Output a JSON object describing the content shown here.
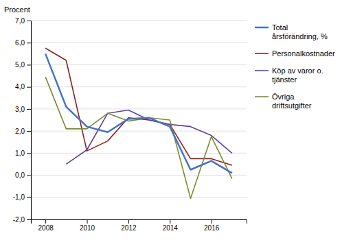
{
  "chart_data": {
    "type": "line",
    "ylabel": "Procent",
    "x": [
      2008,
      2009,
      2010,
      2011,
      2012,
      2013,
      2014,
      2015,
      2016,
      2017
    ],
    "series": [
      {
        "name": "Total\nårsförändring, %",
        "color": "#4472C4",
        "values": [
          5.5,
          3.1,
          2.2,
          1.95,
          2.55,
          2.6,
          2.2,
          0.25,
          0.65,
          0.1
        ]
      },
      {
        "name": "Personalkostnader",
        "color": "#8B2020",
        "values": [
          5.75,
          5.2,
          1.1,
          1.55,
          2.6,
          2.5,
          2.3,
          0.75,
          0.75,
          0.45
        ]
      },
      {
        "name": "Köp av varor o.\ntjänster",
        "color": "#6040A0",
        "values": [
          null,
          0.5,
          1.15,
          2.8,
          2.95,
          2.5,
          2.3,
          2.2,
          1.8,
          1.0
        ]
      },
      {
        "name": "Övriga\ndriftsutgifter",
        "color": "#7A8C2E",
        "values": [
          4.45,
          2.1,
          2.1,
          2.8,
          2.45,
          2.6,
          2.5,
          -1.05,
          1.75,
          -0.15
        ]
      }
    ],
    "xlim": [
      2007.3,
      2017.7
    ],
    "xticks": [
      2008,
      2010,
      2012,
      2014,
      2016
    ],
    "ylim": [
      -2.0,
      7.0
    ],
    "yticks": [
      {
        "value": -2.0,
        "label": "-2,0"
      },
      {
        "value": -1.0,
        "label": "-1,0"
      },
      {
        "value": 0.0,
        "label": "0,0"
      },
      {
        "value": 1.0,
        "label": "1,0"
      },
      {
        "value": 2.0,
        "label": "2,0"
      },
      {
        "value": 3.0,
        "label": "3,0"
      },
      {
        "value": 4.0,
        "label": "4,0"
      },
      {
        "value": 5.0,
        "label": "5,0"
      },
      {
        "value": 6.0,
        "label": "6,0"
      },
      {
        "value": 7.0,
        "label": "7,0"
      }
    ],
    "grid": "y",
    "legend": "right"
  }
}
